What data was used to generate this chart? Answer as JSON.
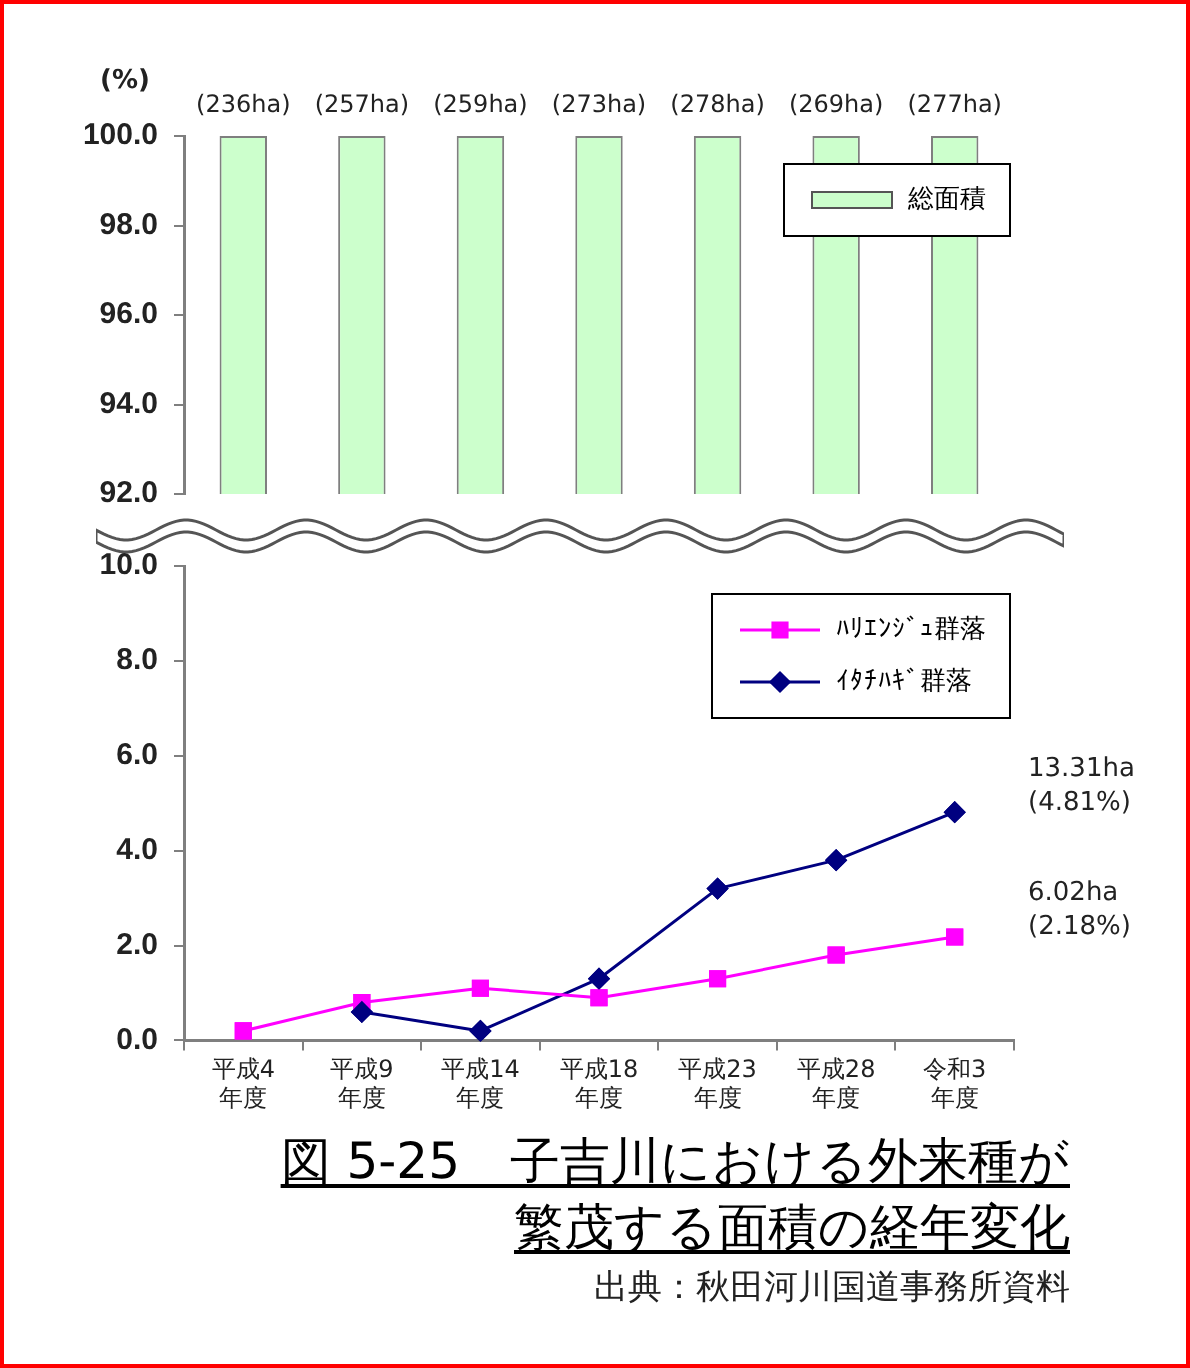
{
  "chart_data": [
    {
      "type": "bar",
      "categories": [
        "平成4\n年度",
        "平成9\n年度",
        "平成14\n年度",
        "平成18\n年度",
        "平成23\n年度",
        "平成28\n年度",
        "令和3\n年度"
      ],
      "series": [
        {
          "name": "総面積",
          "color": "#ccffcc",
          "values": [
            100,
            100,
            100,
            100,
            100,
            100,
            100
          ]
        }
      ],
      "ylim": [
        92,
        100
      ],
      "yticks": [
        {
          "value": 92,
          "label": "92.0"
        },
        {
          "value": 94,
          "label": "94.0"
        },
        {
          "value": 96,
          "label": "96.0"
        },
        {
          "value": 98,
          "label": "98.0"
        },
        {
          "value": 100,
          "label": "100.0"
        }
      ],
      "tick_labels": "y",
      "legend": "top right",
      "grid": false,
      "annotations": [
        "(%)",
        {
          "text": "(236ha)",
          "x": "平成4\n年度",
          "y": 100
        },
        {
          "text": "(257ha)",
          "x": "平成9\n年度",
          "y": 100
        },
        {
          "text": "(259ha)",
          "x": "平成14\n年度",
          "y": 100
        },
        {
          "text": "(273ha)",
          "x": "平成18\n年度",
          "y": 100
        },
        {
          "text": "(278ha)",
          "x": "平成23\n年度",
          "y": 100
        },
        {
          "text": "(269ha)",
          "x": "平成28\n年度",
          "y": 100
        },
        {
          "text": "(277ha)",
          "x": "令和3\n年度",
          "y": 100
        }
      ]
    },
    {
      "type": "line",
      "title": "図 5-25　子吉川における外来種が繁茂する面積の経年変化",
      "categories": [
        "平成4\n年度",
        "平成9\n年度",
        "平成14\n年度",
        "平成18\n年度",
        "平成23\n年度",
        "平成28\n年度",
        "令和3\n年度"
      ],
      "series": [
        {
          "name": "ﾊﾘｴﾝｼﾞｭ群落",
          "color": "#ff00ff",
          "marker": "square",
          "values": [
            0.2,
            0.8,
            1.1,
            0.9,
            1.3,
            1.8,
            2.18
          ]
        },
        {
          "name": "ｲﾀﾁﾊｷﾞ群落",
          "color": "#000080",
          "marker": "diamond",
          "values": [
            null,
            0.6,
            0.2,
            1.3,
            3.2,
            3.8,
            4.81
          ]
        }
      ],
      "ylim": [
        0,
        10
      ],
      "yticks": [
        {
          "value": 0,
          "label": "0.0"
        },
        {
          "value": 2,
          "label": "2.0"
        },
        {
          "value": 4,
          "label": "4.0"
        },
        {
          "value": 6,
          "label": "6.0"
        },
        {
          "value": 8,
          "label": "8.0"
        },
        {
          "value": 10,
          "label": "10.0"
        }
      ],
      "legend": "top right",
      "grid": false,
      "annotations": [
        "13.31ha\n(4.81%)",
        "6.02ha\n(2.18%)",
        "出典：秋田河川国道事務所資料"
      ]
    }
  ]
}
